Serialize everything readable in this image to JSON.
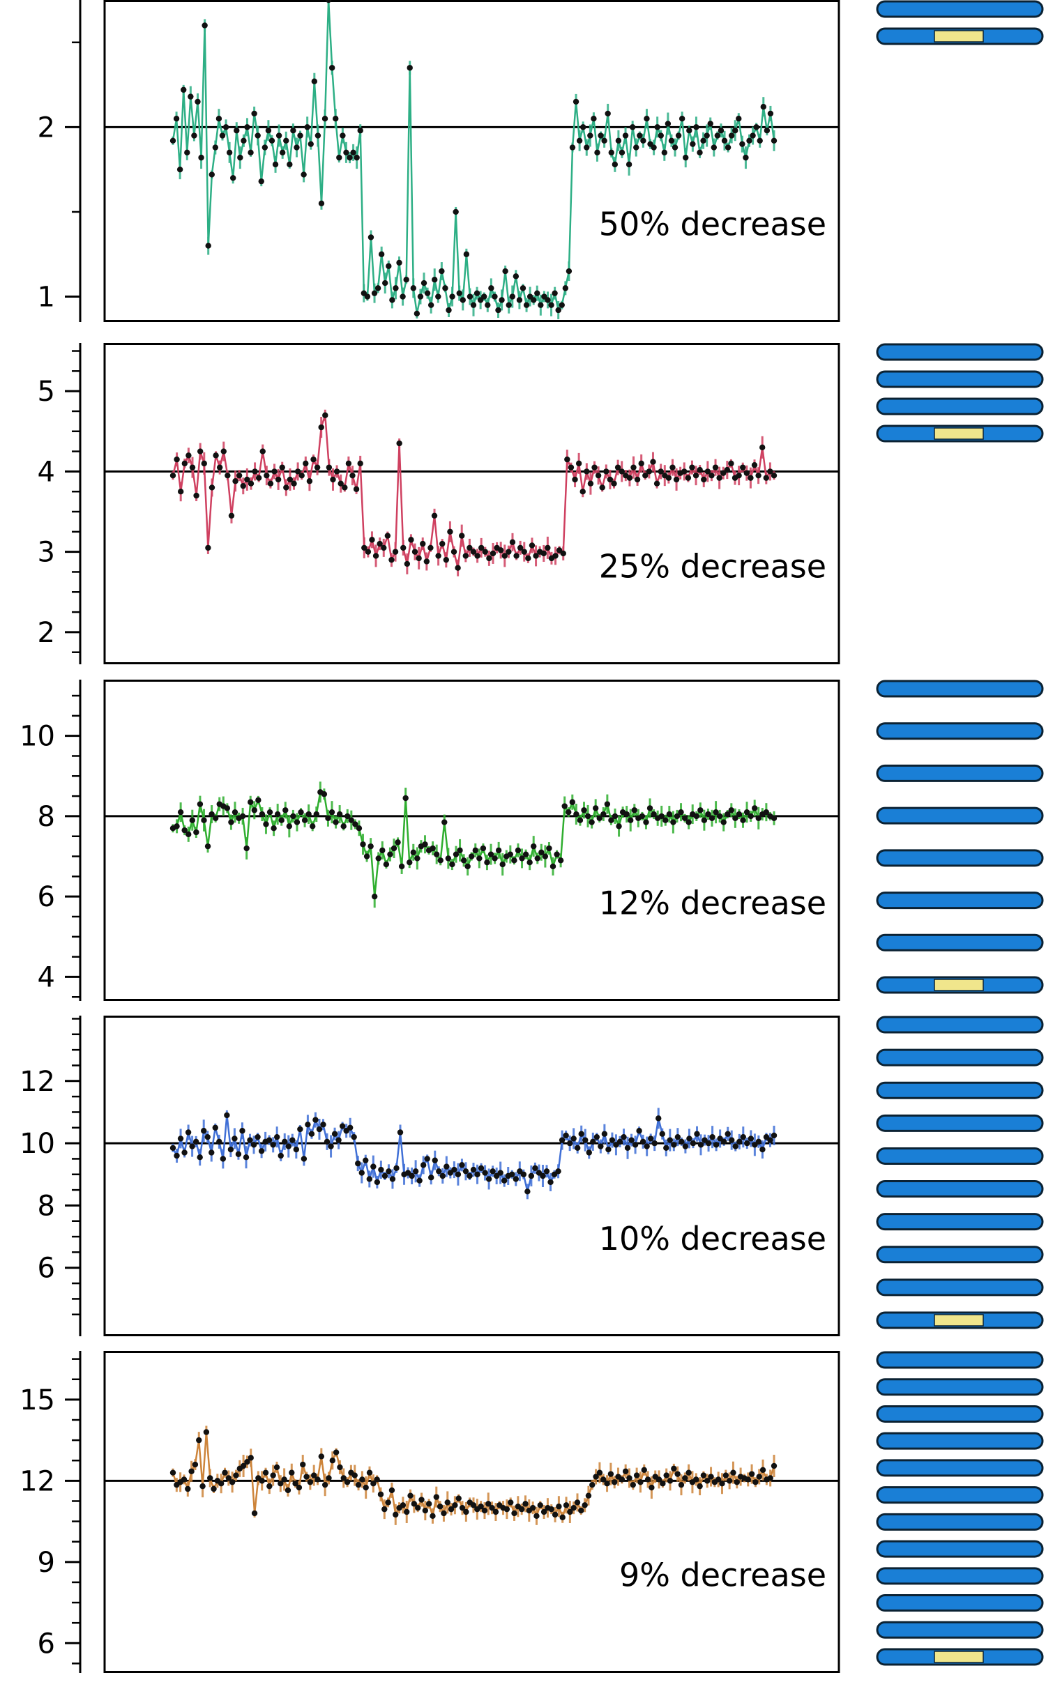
{
  "colors": {
    "chromosome_fill": "#1a7fd6",
    "chromosome_stroke": "#0b2233",
    "deletion_fill": "#f0e68c",
    "point": "#111111",
    "axis": "#000000"
  },
  "chart_data": [
    {
      "type": "line",
      "annotation": "50% decrease",
      "color": "#2daf85",
      "baseline": 2,
      "ylim": [
        0.85,
        2.75
      ],
      "yticks_major": [
        1,
        2
      ],
      "yticks_minor": [
        1.5,
        2.5
      ],
      "chromosome_copies": 2,
      "values": [
        1.92,
        2.05,
        1.75,
        2.22,
        1.85,
        2.18,
        1.95,
        2.15,
        1.82,
        2.6,
        1.3,
        1.72,
        1.88,
        2.05,
        1.95,
        2.0,
        1.85,
        1.7,
        1.98,
        1.82,
        1.92,
        2.0,
        1.85,
        2.08,
        1.95,
        1.68,
        1.88,
        1.98,
        1.92,
        1.78,
        1.95,
        1.85,
        1.92,
        1.78,
        1.98,
        1.88,
        1.95,
        1.72,
        2.0,
        1.9,
        2.27,
        1.95,
        1.55,
        2.05,
        2.75,
        2.35,
        2.05,
        1.82,
        1.95,
        1.85,
        1.82,
        1.85,
        1.82,
        1.98,
        1.02,
        1.0,
        1.35,
        1.02,
        1.05,
        1.25,
        1.08,
        1.18,
        0.98,
        1.05,
        1.2,
        1.0,
        1.1,
        2.35,
        1.05,
        0.9,
        1.0,
        1.08,
        1.02,
        0.95,
        1.1,
        1.0,
        1.15,
        1.05,
        0.92,
        1.0,
        1.5,
        1.02,
        0.98,
        1.25,
        1.0,
        0.95,
        1.02,
        0.98,
        1.0,
        0.95,
        1.05,
        1.0,
        0.92,
        0.98,
        1.15,
        0.95,
        1.0,
        1.12,
        0.98,
        1.05,
        0.95,
        1.0,
        0.98,
        1.02,
        0.95,
        1.0,
        0.98,
        0.95,
        1.02,
        0.92,
        0.95,
        1.05,
        1.15,
        1.88,
        2.15,
        1.92,
        2.0,
        1.88,
        1.95,
        2.05,
        1.85,
        1.95,
        1.92,
        2.08,
        1.85,
        1.78,
        1.92,
        1.85,
        1.95,
        1.78,
        2.0,
        1.88,
        1.95,
        1.92,
        2.05,
        1.9,
        1.88,
        2.0,
        1.95,
        1.85,
        2.02,
        1.92,
        1.88,
        1.95,
        2.05,
        1.82,
        1.98,
        1.9,
        2.0,
        1.85,
        1.92,
        1.95,
        2.02,
        1.88,
        1.95,
        1.98,
        1.92,
        1.88,
        1.95,
        1.98,
        2.05,
        1.9,
        1.82,
        1.92,
        1.95,
        2.0,
        1.92,
        2.12,
        1.98,
        2.08,
        1.92
      ]
    },
    {
      "type": "line",
      "annotation": "25% decrease",
      "color": "#cf4060",
      "baseline": 4,
      "ylim": [
        1.6,
        5.6
      ],
      "yticks_major": [
        2,
        3,
        4,
        5
      ],
      "yticks_minor": [
        1.75,
        2.25,
        2.5,
        2.75,
        3.25,
        3.5,
        3.75,
        4.25,
        4.5,
        4.75,
        5.25,
        5.5
      ],
      "chromosome_copies": 4,
      "values": [
        3.95,
        4.15,
        3.75,
        4.1,
        4.2,
        4.05,
        3.7,
        4.25,
        4.1,
        3.05,
        3.8,
        4.2,
        4.05,
        4.25,
        3.95,
        3.45,
        3.88,
        3.95,
        3.82,
        3.9,
        3.85,
        4.0,
        3.92,
        4.25,
        3.95,
        3.85,
        4.0,
        3.9,
        4.05,
        3.8,
        3.9,
        3.85,
        4.0,
        3.95,
        4.1,
        3.88,
        4.15,
        4.05,
        4.55,
        4.7,
        4.05,
        3.9,
        4.0,
        3.85,
        3.8,
        4.1,
        3.95,
        3.78,
        4.1,
        3.05,
        3.0,
        3.15,
        2.95,
        3.1,
        3.05,
        3.2,
        2.9,
        3.0,
        4.35,
        3.05,
        2.85,
        3.15,
        3.0,
        2.92,
        3.1,
        2.88,
        3.05,
        3.45,
        2.95,
        3.1,
        2.9,
        3.25,
        3.0,
        2.8,
        3.2,
        2.95,
        3.05,
        3.0,
        2.95,
        3.05,
        3.0,
        2.92,
        2.98,
        3.05,
        3.02,
        2.95,
        3.0,
        3.12,
        2.95,
        3.05,
        3.0,
        2.92,
        3.08,
        2.95,
        3.0,
        2.98,
        3.05,
        2.92,
        2.95,
        3.02,
        2.98,
        4.15,
        4.05,
        3.9,
        4.1,
        3.75,
        4.0,
        3.85,
        4.05,
        3.95,
        3.8,
        4.0,
        3.9,
        3.85,
        4.05,
        4.0,
        3.95,
        3.92,
        4.05,
        3.9,
        4.1,
        3.95,
        4.0,
        4.12,
        3.85,
        4.0,
        3.95,
        3.92,
        4.05,
        3.9,
        3.98,
        4.0,
        3.92,
        4.05,
        3.95,
        4.02,
        3.9,
        4.0,
        3.95,
        4.05,
        3.92,
        3.98,
        4.02,
        4.1,
        3.92,
        3.95,
        4.05,
        3.98,
        3.92,
        4.08,
        3.95,
        4.3,
        3.92,
        4.0,
        3.95
      ]
    },
    {
      "type": "line",
      "annotation": "12% decrease",
      "color": "#2fae2f",
      "baseline": 8,
      "ylim": [
        3.4,
        11.4
      ],
      "yticks_major": [
        4,
        6,
        8,
        10
      ],
      "yticks_minor": [
        3.5,
        4.5,
        5,
        5.5,
        6.5,
        7,
        7.5,
        8.5,
        9,
        9.5,
        10.5,
        11
      ],
      "chromosome_copies": 8,
      "values": [
        7.7,
        7.75,
        8.1,
        7.65,
        7.55,
        7.9,
        7.6,
        8.3,
        7.9,
        7.25,
        8.05,
        7.95,
        8.3,
        8.25,
        8.2,
        7.85,
        8.1,
        7.95,
        8.0,
        7.2,
        8.35,
        8.15,
        8.4,
        8.05,
        7.8,
        8.1,
        7.7,
        8.05,
        7.9,
        8.15,
        7.75,
        8.0,
        7.85,
        8.1,
        7.9,
        8.05,
        7.75,
        8.05,
        8.6,
        8.55,
        7.95,
        8.1,
        7.85,
        8.05,
        7.75,
        8.0,
        7.9,
        7.8,
        7.7,
        7.3,
        7.0,
        7.25,
        6.0,
        6.95,
        7.15,
        6.8,
        7.05,
        7.2,
        7.35,
        6.75,
        8.45,
        6.85,
        7.1,
        6.95,
        7.25,
        7.3,
        7.15,
        7.2,
        7.05,
        6.9,
        7.85,
        6.95,
        6.8,
        7.05,
        7.15,
        6.9,
        6.75,
        7.0,
        7.15,
        6.95,
        7.2,
        6.85,
        7.05,
        6.95,
        7.15,
        6.8,
        7.0,
        7.05,
        6.9,
        7.15,
        6.95,
        7.05,
        6.85,
        7.25,
        6.95,
        7.1,
        7.0,
        7.2,
        6.75,
        7.05,
        6.9,
        8.25,
        8.1,
        8.35,
        8.05,
        7.9,
        8.15,
        8.0,
        7.85,
        8.2,
        7.95,
        8.05,
        8.3,
        7.9,
        8.0,
        7.75,
        8.1,
        8.05,
        7.9,
        8.15,
        7.95,
        8.0,
        7.85,
        8.2,
        8.05,
        7.95,
        8.0,
        7.9,
        8.05,
        7.85,
        8.0,
        8.1,
        7.95,
        7.85,
        8.05,
        8.0,
        8.15,
        7.9,
        8.05,
        7.95,
        8.1,
        8.0,
        7.85,
        8.05,
        8.15,
        7.95,
        8.05,
        7.9,
        8.1,
        8.0,
        8.2,
        7.95,
        8.05,
        8.1,
        8.0,
        7.95
      ]
    },
    {
      "type": "line",
      "annotation": "10% decrease",
      "color": "#3f6fd6",
      "baseline": 10,
      "ylim": [
        3.8,
        14.1
      ],
      "yticks_major": [
        6,
        8,
        10,
        12
      ],
      "yticks_minor": [
        4.5,
        5,
        5.5,
        6.5,
        7,
        7.5,
        8.5,
        9,
        9.5,
        10.5,
        11,
        11.5,
        12.5,
        13,
        13.5,
        14
      ],
      "chromosome_copies": 10,
      "values": [
        9.85,
        9.6,
        10.15,
        9.7,
        10.35,
        9.9,
        10.05,
        9.55,
        10.4,
        10.2,
        9.7,
        10.5,
        10.05,
        9.5,
        10.9,
        9.8,
        10.15,
        9.65,
        10.4,
        9.55,
        10.1,
        9.95,
        10.2,
        9.75,
        10.05,
        10.1,
        9.95,
        10.2,
        9.6,
        10.05,
        9.9,
        10.1,
        9.8,
        10.45,
        9.5,
        10.6,
        10.3,
        10.75,
        10.45,
        10.6,
        10.05,
        9.9,
        10.3,
        10.1,
        10.55,
        10.4,
        10.5,
        10.2,
        9.35,
        9.05,
        9.45,
        8.85,
        9.25,
        8.75,
        9.15,
        8.95,
        9.1,
        8.85,
        9.2,
        10.35,
        9.0,
        9.05,
        8.95,
        9.1,
        8.8,
        9.3,
        9.5,
        8.9,
        9.45,
        9.1,
        8.95,
        9.25,
        9.05,
        9.15,
        9.0,
        9.3,
        9.1,
        8.95,
        9.15,
        9.0,
        9.2,
        9.05,
        8.85,
        9.1,
        8.95,
        9.05,
        8.8,
        8.95,
        9.0,
        8.85,
        9.1,
        9.0,
        8.45,
        8.95,
        9.2,
        9.05,
        8.95,
        9.1,
        8.75,
        9.0,
        9.1,
        10.1,
        10.25,
        10.0,
        10.15,
        9.85,
        10.3,
        10.1,
        9.7,
        10.05,
        10.2,
        9.9,
        10.3,
        9.8,
        10.1,
        9.95,
        10.05,
        10.2,
        9.85,
        10.1,
        9.95,
        10.4,
        10.05,
        9.9,
        10.15,
        10.0,
        10.8,
        10.3,
        9.85,
        10.1,
        9.95,
        10.2,
        10.05,
        9.9,
        10.15,
        10.0,
        10.3,
        9.95,
        10.1,
        10.0,
        10.2,
        9.95,
        10.15,
        10.05,
        10.3,
        10.1,
        9.9,
        10.05,
        10.2,
        10.0,
        10.15,
        9.95,
        10.05,
        9.8,
        10.2,
        10.1,
        10.25
      ]
    },
    {
      "type": "line",
      "annotation": "9% decrease",
      "color": "#cd843a",
      "baseline": 12,
      "ylim": [
        4.9,
        16.8
      ],
      "yticks_major": [
        6,
        9,
        12,
        15
      ],
      "yticks_minor": [
        5.25,
        6.75,
        7.5,
        8.25,
        9.75,
        10.5,
        11.25,
        12.75,
        13.5,
        14.25,
        15.75,
        16.5
      ],
      "chromosome_copies": 12,
      "values": [
        12.3,
        11.85,
        11.95,
        12.05,
        11.7,
        12.35,
        12.6,
        13.5,
        11.8,
        13.8,
        12.1,
        11.7,
        12.0,
        11.9,
        12.3,
        12.1,
        11.95,
        12.2,
        12.45,
        12.55,
        12.7,
        12.85,
        10.8,
        12.1,
        12.0,
        12.3,
        11.8,
        12.2,
        12.5,
        11.9,
        12.05,
        11.65,
        12.3,
        11.9,
        11.75,
        12.6,
        12.15,
        11.95,
        12.2,
        12.05,
        12.9,
        11.85,
        12.1,
        12.75,
        13.05,
        12.5,
        12.1,
        11.95,
        12.3,
        12.2,
        11.85,
        12.05,
        11.75,
        12.3,
        11.9,
        12.05,
        11.5,
        10.95,
        11.2,
        11.65,
        10.75,
        11.0,
        11.1,
        10.85,
        11.45,
        11.15,
        11.0,
        11.3,
        10.9,
        11.15,
        10.7,
        11.4,
        11.05,
        10.8,
        11.2,
        10.95,
        11.1,
        11.35,
        11.0,
        10.85,
        11.2,
        11.1,
        10.95,
        11.05,
        10.9,
        11.15,
        11.0,
        10.85,
        11.1,
        11.0,
        10.95,
        11.2,
        10.8,
        11.05,
        10.95,
        11.15,
        10.9,
        11.0,
        10.7,
        11.1,
        10.85,
        11.0,
        10.95,
        10.75,
        11.05,
        10.65,
        11.1,
        10.85,
        11.0,
        11.2,
        10.9,
        11.1,
        11.45,
        11.85,
        12.15,
        12.3,
        12.05,
        11.9,
        12.25,
        11.95,
        12.15,
        12.05,
        12.35,
        12.1,
        11.85,
        12.2,
        11.95,
        12.4,
        12.05,
        11.75,
        12.15,
        12.05,
        11.9,
        12.2,
        12.0,
        12.45,
        12.25,
        11.85,
        12.1,
        12.3,
        11.95,
        12.05,
        11.8,
        12.2,
        12.0,
        12.15,
        11.95,
        12.05,
        11.9,
        12.2,
        12.0,
        12.3,
        11.95,
        12.15,
        12.1,
        12.05,
        12.25,
        11.95,
        12.15,
        12.4,
        12.05,
        12.1,
        12.55
      ]
    }
  ]
}
